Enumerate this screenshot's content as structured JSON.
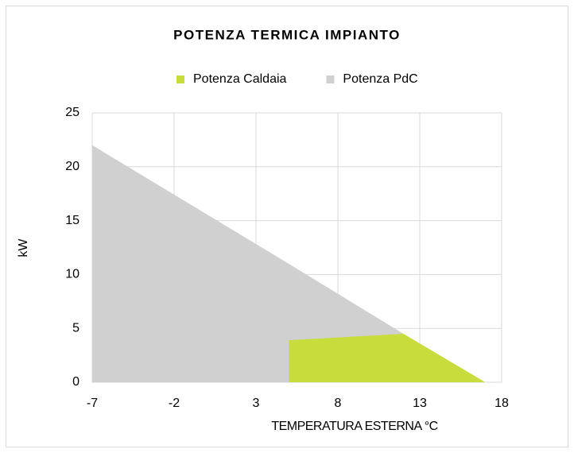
{
  "chart_data": {
    "type": "area",
    "title": "POTENZA TERMICA IMPIANTO",
    "x_label": "TEMPERATURA ESTERNA °C",
    "y_label": "kW",
    "x": [
      -7,
      5,
      12,
      17
    ],
    "series": [
      {
        "name": "Potenza Caldaia",
        "color": "#c8dc3c",
        "values": [
          null,
          3.9,
          4.5,
          0
        ]
      },
      {
        "name": "Potenza PdC",
        "color": "#d0d0d0",
        "values": [
          22,
          11,
          4.5,
          0
        ]
      }
    ],
    "xlim": [
      -7,
      18
    ],
    "xticks": [
      -7,
      -2,
      3,
      8,
      13,
      18
    ],
    "ylim": [
      0,
      25
    ],
    "yticks": [
      0,
      5,
      10,
      15,
      20,
      25
    ],
    "grid": true,
    "legend": "top"
  }
}
